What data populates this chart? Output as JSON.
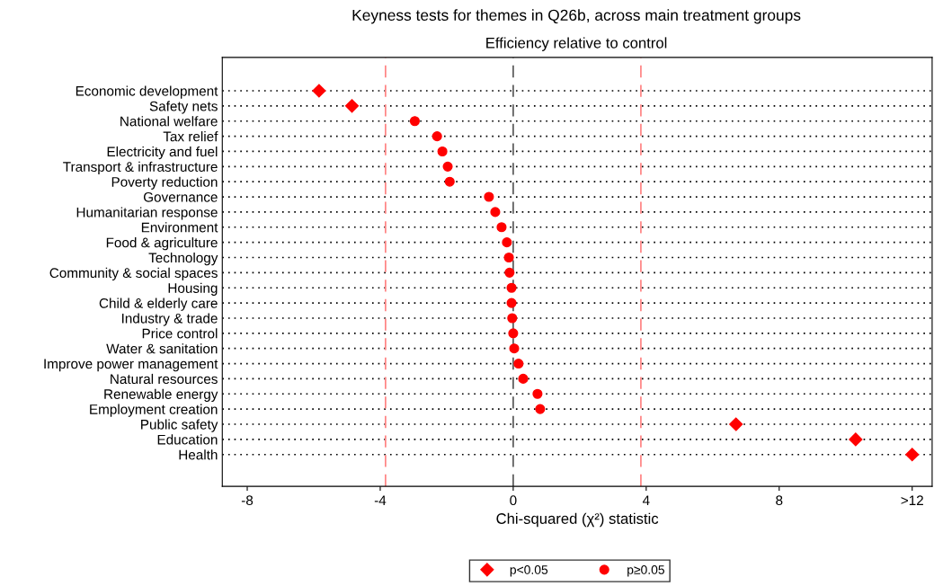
{
  "chart_data": {
    "type": "scatter",
    "orientation": "horizontal",
    "title": "Keyness tests for themes in Q26b, across main treatment groups",
    "subtitle": "Efficiency relative to control",
    "xlabel": "Chi-squared (χ²) statistic",
    "categories": [
      "Economic development",
      "Safety nets",
      "National welfare",
      "Tax relief",
      "Electricity and fuel",
      "Transport & infrastructure",
      "Poverty reduction",
      "Governance",
      "Humanitarian response",
      "Environment",
      "Food & agriculture",
      "Technology",
      "Community & social spaces",
      "Housing",
      "Child & elderly care",
      "Industry & trade",
      "Price control",
      "Water & sanitation",
      "Improve power management",
      "Natural resources",
      "Renewable energy",
      "Employment creation",
      "Public safety",
      "Education",
      "Health"
    ],
    "series": [
      {
        "name": "p<0.05",
        "color": "#ff0000",
        "marker": "diamond",
        "values": [
          -5.84,
          -4.85,
          null,
          null,
          null,
          null,
          null,
          null,
          null,
          null,
          null,
          null,
          null,
          null,
          null,
          null,
          null,
          null,
          null,
          null,
          null,
          null,
          6.7,
          10.3,
          12
        ]
      },
      {
        "name": "p≥0.05",
        "color": "#ff0000",
        "marker": "circle",
        "values": [
          null,
          null,
          -2.96,
          -2.29,
          -2.13,
          -1.97,
          -1.91,
          -0.73,
          -0.54,
          -0.35,
          -0.19,
          -0.13,
          -0.11,
          -0.05,
          -0.05,
          -0.03,
          0.0,
          0.03,
          0.16,
          0.3,
          0.73,
          0.81,
          null,
          null,
          null
        ]
      }
    ],
    "xlim": [
      -8.75,
      12.6
    ],
    "xticks": [
      -8,
      -4,
      0,
      4,
      8,
      {
        "value": 12,
        "label": ">12"
      }
    ],
    "ref_lines": [
      {
        "axis": "x",
        "value": -3.84,
        "color": "#ff8080",
        "line_style": "dashed"
      },
      {
        "axis": "x",
        "value": 0,
        "color": "#555555",
        "line_style": "dashed"
      },
      {
        "axis": "x",
        "value": 3.84,
        "color": "#ff8080",
        "line_style": "dashed"
      }
    ],
    "grid": "y",
    "legend": "bottom"
  }
}
